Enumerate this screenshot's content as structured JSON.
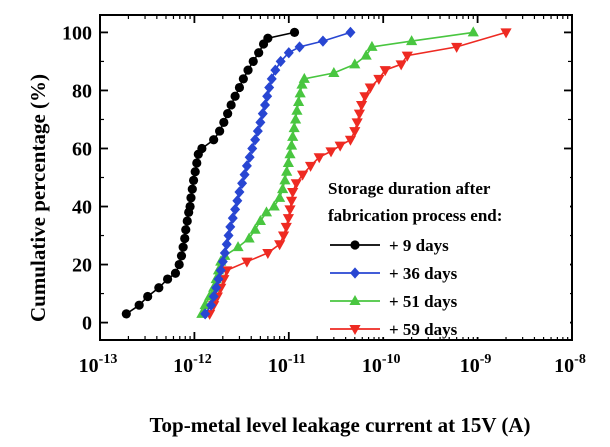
{
  "chart_data": {
    "type": "scatter",
    "xlabel": "Top-metal level leakage current at 15V (A)",
    "ylabel": "Cumulative percentage (%)",
    "x_scale": "log",
    "xlim": [
      1e-13,
      1e-08
    ],
    "ylim": [
      -6,
      106
    ],
    "x_ticks": [
      {
        "value": 1e-13,
        "base": "10",
        "exp": "-13"
      },
      {
        "value": 1e-12,
        "base": "10",
        "exp": "-12"
      },
      {
        "value": 1e-11,
        "base": "10",
        "exp": "-11"
      },
      {
        "value": 1e-10,
        "base": "10",
        "exp": "-10"
      },
      {
        "value": 1e-09,
        "base": "10",
        "exp": "-9"
      },
      {
        "value": 1e-08,
        "base": "10",
        "exp": "-8"
      }
    ],
    "y_ticks": [
      0,
      20,
      40,
      60,
      80,
      100
    ],
    "grid": false,
    "legend": {
      "placement": "lower-right",
      "title_lines": [
        "Storage duration after",
        "fabrication process end:"
      ]
    },
    "series": [
      {
        "name": "+ 9  days",
        "color": "#000000",
        "marker": "circle",
        "points": [
          [
            1.9e-13,
            3
          ],
          [
            2.6e-13,
            6
          ],
          [
            3.2e-13,
            9
          ],
          [
            4.2e-13,
            12
          ],
          [
            5.2e-13,
            15
          ],
          [
            6.3e-13,
            17
          ],
          [
            6.9e-13,
            20
          ],
          [
            7.3e-13,
            23
          ],
          [
            7.6e-13,
            26
          ],
          [
            7.9e-13,
            29
          ],
          [
            8.1e-13,
            32
          ],
          [
            8.4e-13,
            35
          ],
          [
            8.7e-13,
            38
          ],
          [
            9e-13,
            40
          ],
          [
            9.2e-13,
            43
          ],
          [
            9.5e-13,
            46
          ],
          [
            9.8e-13,
            49
          ],
          [
            1.02e-12,
            52
          ],
          [
            1.06e-12,
            55
          ],
          [
            1.1e-12,
            58
          ],
          [
            1.2e-12,
            60
          ],
          [
            1.6e-12,
            63
          ],
          [
            1.85e-12,
            66
          ],
          [
            2.05e-12,
            69
          ],
          [
            2.25e-12,
            72
          ],
          [
            2.45e-12,
            75
          ],
          [
            2.7e-12,
            78
          ],
          [
            3e-12,
            81
          ],
          [
            3.3e-12,
            84
          ],
          [
            3.7e-12,
            87
          ],
          [
            4.2e-12,
            90
          ],
          [
            4.8e-12,
            93
          ],
          [
            5.4e-12,
            96
          ],
          [
            6e-12,
            98
          ],
          [
            1.15e-11,
            100
          ]
        ]
      },
      {
        "name": "+ 36 days",
        "color": "#2846d2",
        "marker": "diamond",
        "points": [
          [
            1.3e-12,
            3
          ],
          [
            1.5e-12,
            6
          ],
          [
            1.6e-12,
            9
          ],
          [
            1.7e-12,
            12
          ],
          [
            1.8e-12,
            15
          ],
          [
            1.9e-12,
            18
          ],
          [
            2e-12,
            21
          ],
          [
            2.1e-12,
            24
          ],
          [
            2.2e-12,
            27
          ],
          [
            2.3e-12,
            30
          ],
          [
            2.4e-12,
            33
          ],
          [
            2.55e-12,
            36
          ],
          [
            2.7e-12,
            39
          ],
          [
            2.85e-12,
            42
          ],
          [
            3e-12,
            45
          ],
          [
            3.2e-12,
            48
          ],
          [
            3.4e-12,
            51
          ],
          [
            3.6e-12,
            54
          ],
          [
            3.85e-12,
            57
          ],
          [
            4.1e-12,
            60
          ],
          [
            4.4e-12,
            63
          ],
          [
            4.7e-12,
            66
          ],
          [
            5e-12,
            69
          ],
          [
            5.3e-12,
            72
          ],
          [
            5.6e-12,
            75
          ],
          [
            5.9e-12,
            78
          ],
          [
            6.2e-12,
            81
          ],
          [
            6.6e-12,
            84
          ],
          [
            7.2e-12,
            87
          ],
          [
            8.2e-12,
            90
          ],
          [
            1e-11,
            93
          ],
          [
            1.3e-11,
            95
          ],
          [
            2.3e-11,
            97
          ],
          [
            4.5e-11,
            100
          ]
        ]
      },
      {
        "name": "+ 51 days",
        "color": "#49c640",
        "marker": "triangle-up",
        "points": [
          [
            1.2e-12,
            3
          ],
          [
            1.3e-12,
            6
          ],
          [
            1.45e-12,
            9
          ],
          [
            1.6e-12,
            12
          ],
          [
            1.7e-12,
            15
          ],
          [
            1.8e-12,
            18
          ],
          [
            1.9e-12,
            21
          ],
          [
            2.1e-12,
            23
          ],
          [
            2.9e-12,
            26
          ],
          [
            3.8e-12,
            29
          ],
          [
            4.4e-12,
            32
          ],
          [
            5e-12,
            35
          ],
          [
            5.8e-12,
            38
          ],
          [
            7e-12,
            40
          ],
          [
            8e-12,
            43
          ],
          [
            8.6e-12,
            46
          ],
          [
            9.1e-12,
            49
          ],
          [
            9.5e-12,
            52
          ],
          [
            9.9e-12,
            55
          ],
          [
            1.03e-11,
            58
          ],
          [
            1.07e-11,
            61
          ],
          [
            1.1e-11,
            64
          ],
          [
            1.14e-11,
            67
          ],
          [
            1.18e-11,
            70
          ],
          [
            1.22e-11,
            73
          ],
          [
            1.27e-11,
            76
          ],
          [
            1.32e-11,
            79
          ],
          [
            1.38e-11,
            82
          ],
          [
            1.46e-11,
            84
          ],
          [
            3e-11,
            86
          ],
          [
            5e-11,
            89
          ],
          [
            6.6e-11,
            92
          ],
          [
            7.6e-11,
            95
          ],
          [
            2e-10,
            97
          ],
          [
            9e-10,
            100
          ]
        ]
      },
      {
        "name": "+ 59 days",
        "color": "#ee2a22",
        "marker": "triangle-down",
        "points": [
          [
            1.45e-12,
            3
          ],
          [
            1.6e-12,
            6
          ],
          [
            1.75e-12,
            9
          ],
          [
            1.9e-12,
            12
          ],
          [
            2.05e-12,
            15
          ],
          [
            2.2e-12,
            18
          ],
          [
            3.6e-12,
            21
          ],
          [
            6e-12,
            24
          ],
          [
            8e-12,
            27
          ],
          [
            8.8e-12,
            30
          ],
          [
            9.4e-12,
            33
          ],
          [
            9.9e-12,
            36
          ],
          [
            1.03e-11,
            39
          ],
          [
            1.07e-11,
            42
          ],
          [
            1.1e-11,
            45
          ],
          [
            1.2e-11,
            48
          ],
          [
            1.4e-11,
            51
          ],
          [
            1.7e-11,
            54
          ],
          [
            2.1e-11,
            57
          ],
          [
            2.8e-11,
            59
          ],
          [
            3.5e-11,
            61
          ],
          [
            4.5e-11,
            63
          ],
          [
            5e-11,
            66
          ],
          [
            5.3e-11,
            69
          ],
          [
            5.6e-11,
            72
          ],
          [
            5.9e-11,
            75
          ],
          [
            6.4e-11,
            78
          ],
          [
            7.3e-11,
            81
          ],
          [
            9e-11,
            84
          ],
          [
            1.05e-10,
            87
          ],
          [
            1.55e-10,
            89
          ],
          [
            1.8e-10,
            92
          ],
          [
            6e-10,
            95
          ],
          [
            2e-09,
            100
          ]
        ]
      }
    ]
  }
}
